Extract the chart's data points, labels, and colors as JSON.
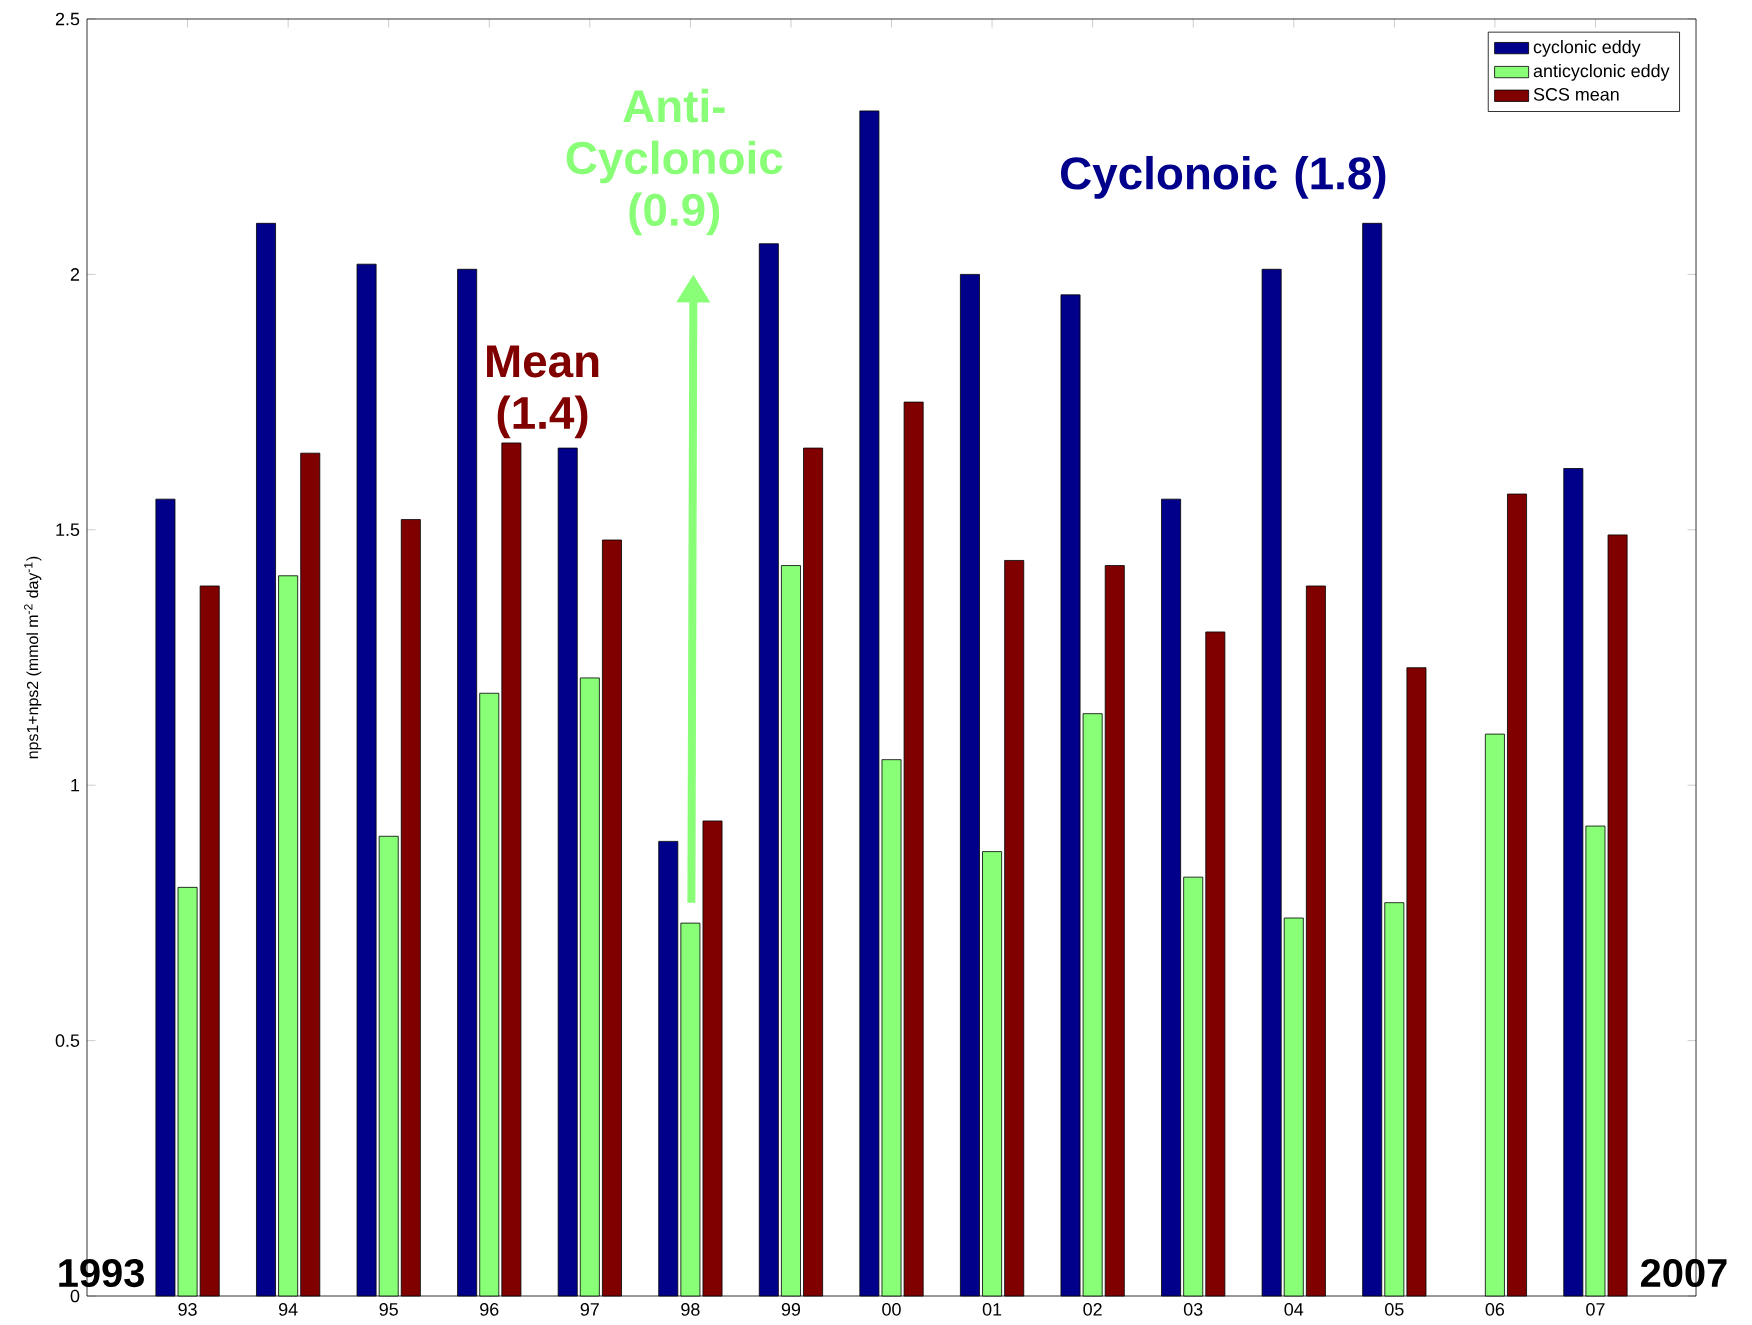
{
  "chart_data": {
    "type": "bar",
    "ylabel": "nps1+nps2 (mmol m$^{-2}$ day$^{-1}$)",
    "categories": [
      "93",
      "94",
      "95",
      "96",
      "97",
      "98",
      "99",
      "00",
      "01",
      "02",
      "03",
      "04",
      "05",
      "06",
      "07"
    ],
    "series": [
      {
        "name": "cyclonic eddy",
        "color": "#00008b",
        "values": [
          1.56,
          2.1,
          2.02,
          2.01,
          1.66,
          0.89,
          2.06,
          2.32,
          2.0,
          1.96,
          1.56,
          2.01,
          2.1,
          null,
          1.62
        ]
      },
      {
        "name": "anticyclonic eddy",
        "color": "#88ff77",
        "values": [
          0.8,
          1.41,
          0.9,
          1.18,
          1.21,
          0.73,
          1.43,
          1.05,
          0.87,
          1.14,
          0.82,
          0.74,
          0.77,
          1.1,
          0.92
        ]
      },
      {
        "name": "SCS mean",
        "color": "#800000",
        "values": [
          1.39,
          1.65,
          1.52,
          1.67,
          1.48,
          0.93,
          1.66,
          1.75,
          1.44,
          1.43,
          1.3,
          1.39,
          1.23,
          1.57,
          1.49
        ]
      }
    ],
    "ylim": [
      0,
      2.5
    ],
    "yticks": [
      0,
      0.5,
      1,
      1.5,
      2,
      2.5
    ],
    "legend": "top right",
    "annotations": [
      "Cyclonoic (1.8)",
      "Anti-Cyclonoic (0.9)",
      "Mean (1.4)",
      "1993",
      "2007"
    ]
  }
}
